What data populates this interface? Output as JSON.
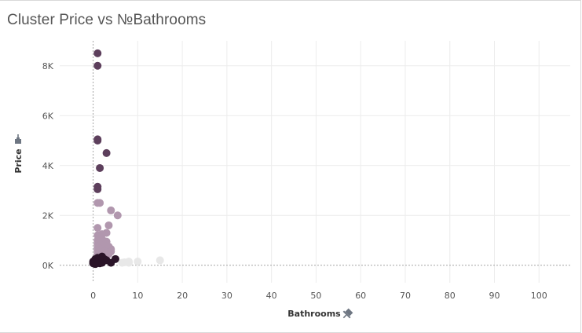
{
  "title": "Cluster Price vs №Bathrooms",
  "colors": {
    "grid": "#ececec",
    "zero_line": "#a6a6a6",
    "axis_text": "#555555",
    "pin": "#6e7682",
    "cluster_dark": "#5d3f5c",
    "cluster_light": "#b197ae",
    "cluster_black": "#2a1428",
    "cluster_grey": "#e8e8e8"
  },
  "icons": {
    "pin": "pin-icon"
  },
  "chart_data": {
    "type": "scatter",
    "title": "Cluster Price vs №Bathrooms",
    "xlabel": "Bathrooms",
    "ylabel": "Price",
    "xlim": [
      -7.5,
      107
    ],
    "ylim": [
      -700,
      9000
    ],
    "x_ticks": [
      0,
      10,
      20,
      30,
      40,
      50,
      60,
      70,
      80,
      90,
      100
    ],
    "y_ticks": [
      0,
      2000,
      4000,
      6000,
      8000
    ],
    "x_tick_labels": [
      "0",
      "10",
      "20",
      "30",
      "40",
      "50",
      "60",
      "70",
      "80",
      "90",
      "100"
    ],
    "y_tick_labels": [
      "0K",
      "2K",
      "4K",
      "6K",
      "8K"
    ],
    "grid": true,
    "series": [
      {
        "color": "#5d3f5c",
        "points": [
          [
            1,
            8500
          ],
          [
            1,
            8000
          ],
          [
            1,
            5000
          ],
          [
            1,
            5050
          ],
          [
            3,
            4500
          ],
          [
            1.5,
            3900
          ],
          [
            1,
            3150
          ],
          [
            1,
            3050
          ]
        ]
      },
      {
        "color": "#b197ae",
        "points": [
          [
            1,
            2500
          ],
          [
            1.5,
            2500
          ],
          [
            4,
            2200
          ],
          [
            5.5,
            2000
          ],
          [
            3.5,
            1600
          ],
          [
            1,
            1500
          ],
          [
            1,
            1200
          ],
          [
            1.5,
            1200
          ],
          [
            2,
            1250
          ],
          [
            3,
            1300
          ],
          [
            1,
            1000
          ],
          [
            2,
            1050
          ],
          [
            3,
            950
          ],
          [
            1,
            850
          ],
          [
            1.5,
            800
          ],
          [
            2.5,
            800
          ],
          [
            3.5,
            750
          ],
          [
            1,
            700
          ],
          [
            2,
            650
          ],
          [
            4,
            650
          ],
          [
            1,
            600
          ],
          [
            1.5,
            550
          ],
          [
            2.5,
            550
          ],
          [
            3,
            500
          ],
          [
            4,
            550
          ],
          [
            1,
            450
          ],
          [
            2,
            450
          ],
          [
            3.5,
            450
          ],
          [
            1.5,
            400
          ],
          [
            2.5,
            400
          ]
        ]
      },
      {
        "color": "#2a1428",
        "points": [
          [
            0,
            150
          ],
          [
            0.5,
            250
          ],
          [
            1,
            300
          ],
          [
            1.5,
            200
          ],
          [
            2,
            350
          ],
          [
            1,
            100
          ],
          [
            0.5,
            50
          ],
          [
            1.5,
            80
          ],
          [
            2,
            150
          ],
          [
            2.5,
            250
          ],
          [
            3,
            200
          ],
          [
            1,
            200
          ],
          [
            0,
            80
          ],
          [
            2,
            100
          ],
          [
            4,
            100
          ],
          [
            5,
            250
          ],
          [
            1.5,
            300
          ],
          [
            0.5,
            150
          ]
        ]
      },
      {
        "color": "#e8e8e8",
        "points": [
          [
            6.5,
            100
          ],
          [
            7,
            120
          ],
          [
            8,
            100
          ],
          [
            8,
            150
          ],
          [
            10,
            150
          ],
          [
            15,
            200
          ]
        ]
      }
    ]
  }
}
